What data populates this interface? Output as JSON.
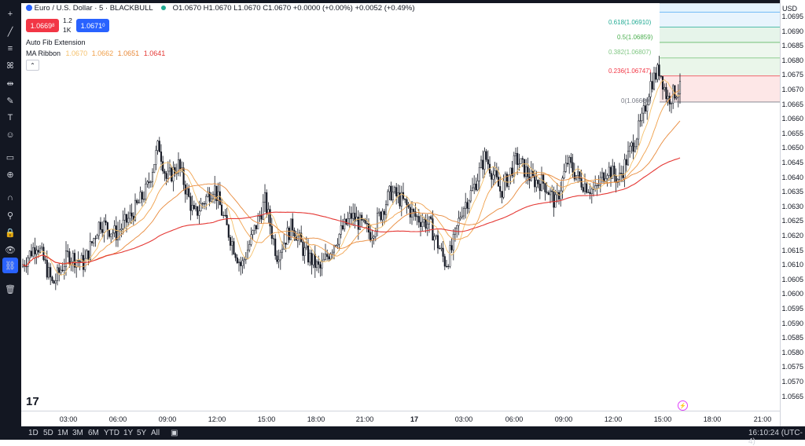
{
  "symbol": {
    "title": "Euro / U.S. Dollar · 5 · BLACKBULL",
    "ohlc": "O1.0670 H1.0670 L1.0670 C1.0670 +0.0000 (+0.00%) +0.0052 (+0.49%)"
  },
  "trade": {
    "sell_price": "1.0669",
    "sell_sup": "8",
    "buy_price": "1.0671",
    "buy_sup": "0",
    "spread": "1.2",
    "quantity": "1K"
  },
  "indicators": {
    "fib_name": "Auto Fib Extension",
    "ma_name": "MA Ribbon",
    "ma_values": [
      "1.0670",
      "1.0662",
      "1.0651",
      "1.0641"
    ],
    "ma_colors": [
      "#f5c16c",
      "#f0a04b",
      "#e8893a",
      "#e53935"
    ]
  },
  "fib_levels": [
    {
      "label": "0.618(1.06910)",
      "color": "#22ab94"
    },
    {
      "label": "0.5(1.06859)",
      "color": "#4caf50"
    },
    {
      "label": "0.382(1.06807)",
      "color": "#81c784"
    },
    {
      "label": "0.236(1.06747)",
      "color": "#f23645"
    },
    {
      "label": "0(1.06660)",
      "color": "#787b86"
    }
  ],
  "axis": {
    "currency": "USD",
    "price_ticks": [
      "1.0695",
      "1.0690",
      "1.0685",
      "1.0680",
      "1.0675",
      "1.0670",
      "1.0665",
      "1.0660",
      "1.0655",
      "1.0650",
      "1.0645",
      "1.0640",
      "1.0635",
      "1.0630",
      "1.0625",
      "1.0620",
      "1.0615",
      "1.0610",
      "1.0605",
      "1.0600",
      "1.0595",
      "1.0590",
      "1.0585",
      "1.0580",
      "1.0575",
      "1.0570",
      "1.0565"
    ],
    "time_ticks": [
      "03:00",
      "06:00",
      "09:00",
      "12:00",
      "15:00",
      "18:00",
      "21:00",
      "17",
      "03:00",
      "06:00",
      "09:00",
      "12:00",
      "15:00",
      "18:00",
      "21:00"
    ]
  },
  "footer": {
    "ranges": [
      "1D",
      "5D",
      "1M",
      "3M",
      "6M",
      "YTD",
      "1Y",
      "5Y",
      "All"
    ],
    "clock": "16:10:24 (UTC-4)"
  },
  "tools": [
    "crosshair-icon",
    "trend-line-icon",
    "fib-icon",
    "pattern-icon",
    "measure-icon",
    "brush-icon",
    "text-icon",
    "emoji-icon",
    "ruler-icon",
    "zoom-icon",
    "magnet-icon",
    "lock-draw-icon",
    "lock-icon",
    "eye-icon",
    "link-icon",
    "trash-icon"
  ],
  "chart_data": {
    "type": "candlestick",
    "price_range": [
      1.0563,
      1.0699
    ],
    "price_ma_series": [
      "MA 1",
      "MA 2",
      "MA 3",
      "MA 4"
    ]
  }
}
